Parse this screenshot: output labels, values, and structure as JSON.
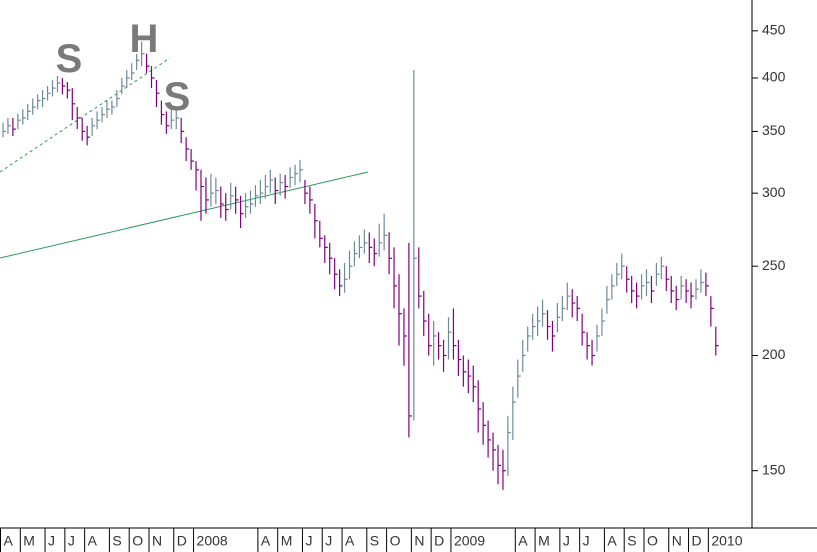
{
  "chart_data": {
    "type": "ohlc",
    "categories": [
      "A",
      null,
      null,
      null,
      "M",
      null,
      null,
      null,
      null,
      "J",
      null,
      null,
      null,
      "J",
      null,
      null,
      null,
      "A",
      null,
      null,
      null,
      null,
      "S",
      null,
      null,
      null,
      "O",
      null,
      null,
      null,
      "N",
      null,
      null,
      null,
      null,
      "D",
      null,
      null,
      null,
      "2008",
      null,
      null,
      null,
      null,
      null,
      null,
      null,
      null,
      null,
      null,
      null,
      null,
      "A",
      null,
      null,
      null,
      "M",
      null,
      null,
      null,
      null,
      "J",
      null,
      null,
      null,
      "J",
      null,
      null,
      null,
      "A",
      null,
      null,
      null,
      null,
      "S",
      null,
      null,
      null,
      "O",
      null,
      null,
      null,
      null,
      "N",
      null,
      null,
      null,
      "D",
      null,
      null,
      null,
      "2009",
      null,
      null,
      null,
      null,
      null,
      null,
      null,
      null,
      null,
      null,
      null,
      null,
      "A",
      null,
      null,
      null,
      "M",
      null,
      null,
      null,
      null,
      "J",
      null,
      null,
      null,
      "J",
      null,
      null,
      null,
      null,
      "A",
      null,
      null,
      null,
      "S",
      null,
      null,
      null,
      "O",
      null,
      null,
      null,
      null,
      "N",
      null,
      null,
      null,
      "D",
      null,
      null,
      null,
      "2010",
      null
    ],
    "high": [
      358,
      362,
      362,
      366,
      370,
      375,
      380,
      384,
      388,
      392,
      398,
      402,
      400,
      396,
      390,
      372,
      362,
      355,
      362,
      368,
      372,
      378,
      378,
      388,
      400,
      408,
      415,
      425,
      438,
      425,
      412,
      398,
      378,
      368,
      372,
      370,
      362,
      345,
      335,
      325,
      318,
      312,
      315,
      312,
      305,
      300,
      308,
      305,
      298,
      300,
      302,
      306,
      310,
      314,
      318,
      312,
      315,
      314,
      320,
      322,
      326,
      310,
      305,
      292,
      280,
      270,
      265,
      255,
      248,
      252,
      260,
      266,
      270,
      274,
      272,
      268,
      278,
      285,
      272,
      262,
      245,
      225,
      265,
      408,
      262,
      235,
      222,
      218,
      212,
      208,
      220,
      225,
      208,
      200,
      198,
      195,
      188,
      178,
      170,
      165,
      160,
      158,
      172,
      185,
      198,
      208,
      215,
      222,
      226,
      230,
      224,
      218,
      228,
      232,
      240,
      236,
      232,
      222,
      212,
      208,
      216,
      225,
      238,
      245,
      252,
      258,
      250,
      244,
      240,
      245,
      248,
      244,
      252,
      256,
      250,
      244,
      238,
      244,
      242,
      240,
      242,
      248,
      246,
      232,
      215
    ],
    "low": [
      345,
      348,
      346,
      352,
      356,
      360,
      365,
      370,
      372,
      378,
      382,
      386,
      384,
      380,
      360,
      352,
      342,
      338,
      346,
      352,
      358,
      362,
      365,
      372,
      384,
      390,
      398,
      408,
      412,
      405,
      390,
      372,
      356,
      348,
      352,
      352,
      340,
      325,
      318,
      302,
      280,
      285,
      290,
      292,
      282,
      280,
      288,
      285,
      275,
      282,
      285,
      290,
      292,
      296,
      300,
      292,
      298,
      296,
      304,
      306,
      308,
      292,
      285,
      268,
      262,
      252,
      245,
      236,
      232,
      234,
      242,
      250,
      255,
      258,
      252,
      250,
      256,
      260,
      245,
      225,
      205,
      195,
      163,
      170,
      225,
      210,
      200,
      195,
      198,
      192,
      198,
      198,
      190,
      185,
      182,
      178,
      165,
      160,
      155,
      150,
      145,
      143,
      148,
      162,
      180,
      192,
      202,
      208,
      210,
      215,
      208,
      202,
      212,
      218,
      224,
      220,
      218,
      205,
      198,
      195,
      202,
      210,
      222,
      230,
      238,
      242,
      234,
      228,
      225,
      230,
      232,
      228,
      238,
      242,
      235,
      228,
      224,
      230,
      228,
      225,
      230,
      234,
      232,
      215,
      200
    ],
    "close": [
      350,
      355,
      352,
      360,
      362,
      368,
      372,
      378,
      380,
      385,
      390,
      395,
      392,
      388,
      375,
      362,
      350,
      345,
      355,
      360,
      365,
      370,
      372,
      380,
      392,
      400,
      405,
      418,
      425,
      412,
      400,
      385,
      365,
      355,
      360,
      362,
      350,
      335,
      325,
      318,
      305,
      295,
      300,
      302,
      292,
      288,
      298,
      295,
      285,
      290,
      292,
      298,
      300,
      305,
      310,
      302,
      308,
      305,
      312,
      315,
      318,
      300,
      295,
      280,
      268,
      262,
      255,
      245,
      238,
      242,
      250,
      258,
      262,
      265,
      262,
      258,
      265,
      270,
      255,
      238,
      222,
      210,
      172,
      255,
      232,
      218,
      205,
      210,
      205,
      200,
      212,
      205,
      198,
      192,
      190,
      185,
      175,
      168,
      162,
      158,
      152,
      150,
      165,
      178,
      190,
      200,
      210,
      215,
      218,
      222,
      215,
      210,
      220,
      225,
      232,
      228,
      225,
      212,
      205,
      200,
      210,
      218,
      230,
      238,
      245,
      250,
      242,
      235,
      232,
      238,
      240,
      235,
      245,
      250,
      242,
      235,
      230,
      238,
      235,
      232,
      236,
      240,
      238,
      225,
      205
    ],
    "up_color": "#6e8a99",
    "down_color": "#800080",
    "log_scale": true,
    "ylim": [
      130,
      486
    ],
    "yticks": [
      150,
      200,
      250,
      300,
      350,
      400,
      450
    ],
    "annotations": [
      "S",
      "H",
      "S"
    ]
  }
}
